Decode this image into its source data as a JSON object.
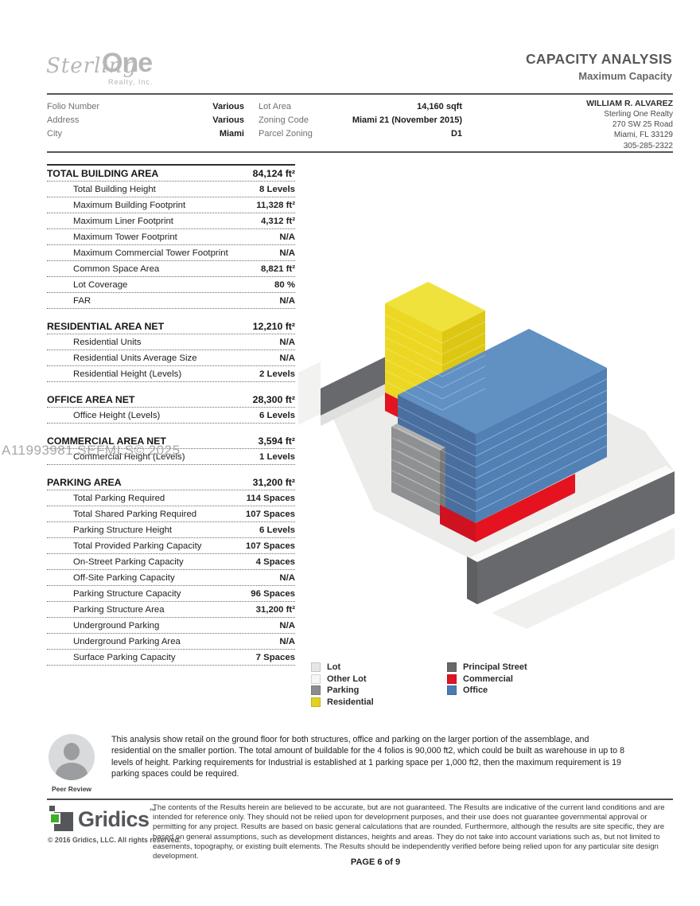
{
  "watermark": "A11993981 SEFMLS© 2025",
  "header": {
    "logo": {
      "script": "Sterling",
      "bold": "One",
      "sub": "Realty, Inc."
    },
    "title": "CAPACITY ANALYSIS",
    "subtitle": "Maximum Capacity",
    "info_left": [
      {
        "label": "Folio Number",
        "value": "Various"
      },
      {
        "label": "Address",
        "value": "Various"
      },
      {
        "label": "City",
        "value": "Miami"
      }
    ],
    "info_mid": [
      {
        "label": "Lot Area",
        "value": "14,160 sqft"
      },
      {
        "label": "Zoning Code",
        "value": "Miami 21 (November 2015)"
      },
      {
        "label": "Parcel Zoning",
        "value": "D1"
      }
    ],
    "contact": {
      "name": "WILLIAM R. ALVAREZ",
      "lines": [
        "Sterling One Realty",
        "270 SW 25 Road",
        "Miami, FL 33129",
        "305-285-2322"
      ]
    }
  },
  "table": {
    "sections": [
      {
        "title": "TOTAL BUILDING AREA",
        "value": "84,124 ft²",
        "rows": [
          [
            "Total Building Height",
            "8 Levels"
          ],
          [
            "Maximum Building Footprint",
            "11,328 ft²"
          ],
          [
            "Maximum Liner Footprint",
            "4,312 ft²"
          ],
          [
            "Maximum Tower Footprint",
            "N/A"
          ],
          [
            "Maximum Commercial Tower Footprint",
            "N/A"
          ],
          [
            "Common Space Area",
            "8,821 ft²"
          ],
          [
            "Lot Coverage",
            "80 %"
          ],
          [
            "FAR",
            "N/A"
          ]
        ]
      },
      {
        "title": "RESIDENTIAL AREA NET",
        "value": "12,210 ft²",
        "rows": [
          [
            "Residential Units",
            "N/A"
          ],
          [
            "Residential Units Average Size",
            "N/A"
          ],
          [
            "Residential Height (Levels)",
            "2 Levels"
          ]
        ]
      },
      {
        "title": "OFFICE AREA NET",
        "value": "28,300 ft²",
        "rows": [
          [
            "Office Height (Levels)",
            "6 Levels"
          ]
        ]
      },
      {
        "title": "COMMERCIAL AREA NET",
        "value": "3,594 ft²",
        "rows": [
          [
            "Commercial Height (Levels)",
            "1 Levels"
          ]
        ]
      },
      {
        "title": "PARKING AREA",
        "value": "31,200 ft²",
        "rows": [
          [
            "Total Parking Required",
            "114 Spaces"
          ],
          [
            "Total Shared Parking Required",
            "107 Spaces"
          ],
          [
            "Parking Structure Height",
            "6 Levels"
          ],
          [
            "Total Provided Parking Capacity",
            "107 Spaces"
          ],
          [
            "On-Street Parking Capacity",
            "4 Spaces"
          ],
          [
            "Off-Site Parking Capacity",
            "N/A"
          ],
          [
            "Parking Structure Capacity",
            "96 Spaces"
          ],
          [
            "Parking Structure Area",
            "31,200 ft²"
          ],
          [
            "Underground Parking",
            "N/A"
          ],
          [
            "Underground Parking Area",
            "N/A"
          ],
          [
            "Surface Parking Capacity",
            "7 Spaces"
          ]
        ]
      }
    ]
  },
  "legend": {
    "columns": [
      {
        "items": [
          {
            "label": "Lot",
            "color": "#e6e6e5"
          },
          {
            "label": "Other Lot",
            "color": "#f6f6f5"
          },
          {
            "label": "Parking",
            "color": "#8b8c8e"
          },
          {
            "label": "Residential",
            "color": "#e3d122"
          }
        ]
      },
      {
        "items": [
          {
            "label": "Principal Street",
            "color": "#67696b"
          },
          {
            "label": "Commercial",
            "color": "#e01521"
          },
          {
            "label": "Office",
            "color": "#4d7bb1"
          }
        ]
      }
    ]
  },
  "peer_review": {
    "label": "Peer Review",
    "text": "This analysis show retail on the ground floor for both structures, office and parking on the larger portion of the assemblage, and residential on the smaller portion. The total amount of buildable for the 4 folios is 90,000 ft2, which could be built as warehouse in up to 8 levels of height. Parking requirements for Industrial is established at 1 parking space per 1,000 ft2, then the maximum requirement is 19 parking spaces could be required."
  },
  "footer": {
    "brand": "Gridics",
    "tm": "™",
    "copyright": "© 2016 Gridics, LLC. All rights reserved.",
    "disclaimer": "The contents of the Results herein are believed to be accurate, but are not guaranteed.  The Results are indicative of the current land conditions and are intended for reference only.  They should not be relied upon for development purposes, and their use does not guarantee governmental approval or permitting for any project. Results are based on basic general calculations that are rounded.  Furthermore, although the results are site specific, they are based on general assumptions, such as development distances, heights and areas.  They do not take into account variations such as, but not limited to easements, topography, or existing built elements.  The Results should be independently verified before being relied upon for any particular site design development.",
    "page": "PAGE 6 of 9"
  }
}
